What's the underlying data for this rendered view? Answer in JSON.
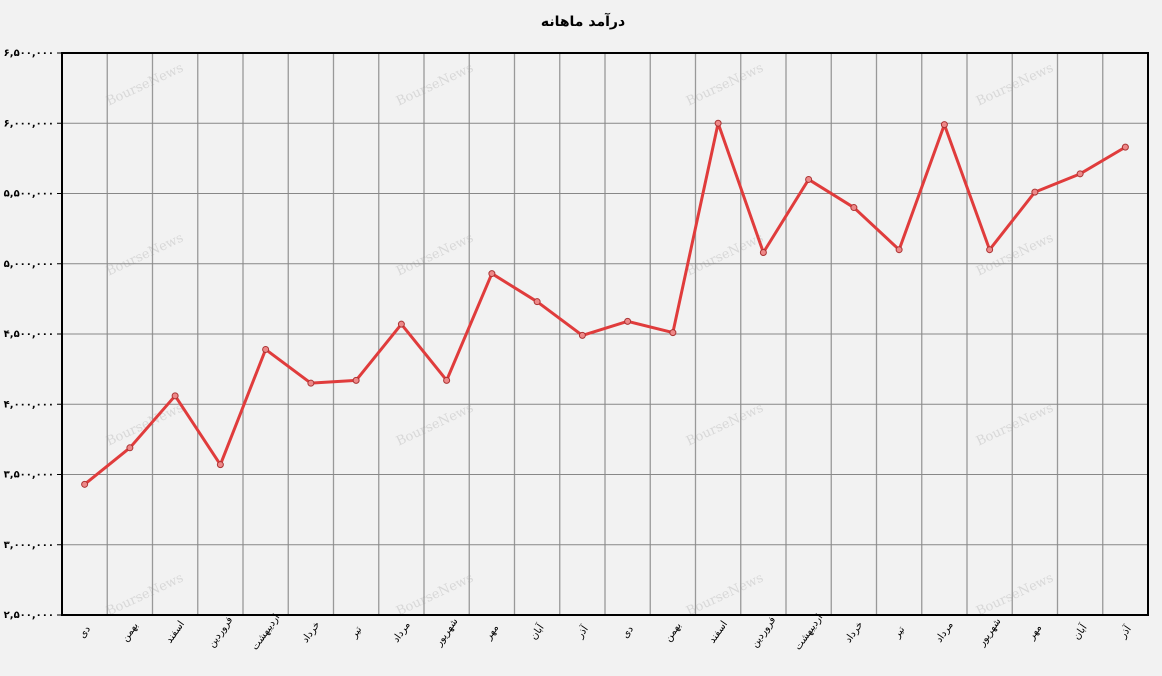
{
  "chart_data": {
    "type": "line",
    "title": "درآمد ماهانه",
    "watermark": "BourseNews",
    "categories": [
      "دی",
      "بهمن",
      "اسفند",
      "فروردین",
      "اردیبهشت",
      "خرداد",
      "تیر",
      "مرداد",
      "شهریور",
      "مهر",
      "آبان",
      "آذر",
      "دی",
      "بهمن",
      "اسفند",
      "فروردین",
      "اردیبهشت",
      "خرداد",
      "تیر",
      "مرداد",
      "شهریور",
      "مهر",
      "آبان",
      "آذر"
    ],
    "series": [
      {
        "name": "درآمد ماهانه",
        "color": "#e03c3c",
        "values": [
          3430000,
          3690000,
          4060000,
          3570000,
          4390000,
          4150000,
          4170000,
          4570000,
          4170000,
          4930000,
          4730000,
          4490000,
          4590000,
          4510000,
          6000000,
          5080000,
          5600000,
          5400000,
          5100000,
          5990000,
          5100000,
          5510000,
          5640000,
          5830000
        ]
      }
    ],
    "ylim": [
      2500000,
      6500000
    ],
    "yticks": [
      {
        "value": 2500000,
        "label": "۲,۵۰۰,۰۰۰"
      },
      {
        "value": 3000000,
        "label": "۳,۰۰۰,۰۰۰"
      },
      {
        "value": 3500000,
        "label": "۳,۵۰۰,۰۰۰"
      },
      {
        "value": 4000000,
        "label": "۴,۰۰۰,۰۰۰"
      },
      {
        "value": 4500000,
        "label": "۴,۵۰۰,۰۰۰"
      },
      {
        "value": 5000000,
        "label": "۵,۰۰۰,۰۰۰"
      },
      {
        "value": 5500000,
        "label": "۵,۵۰۰,۰۰۰"
      },
      {
        "value": 6000000,
        "label": "۶,۰۰۰,۰۰۰"
      },
      {
        "value": 6500000,
        "label": "۶,۵۰۰,۰۰۰"
      }
    ],
    "grid": true
  }
}
